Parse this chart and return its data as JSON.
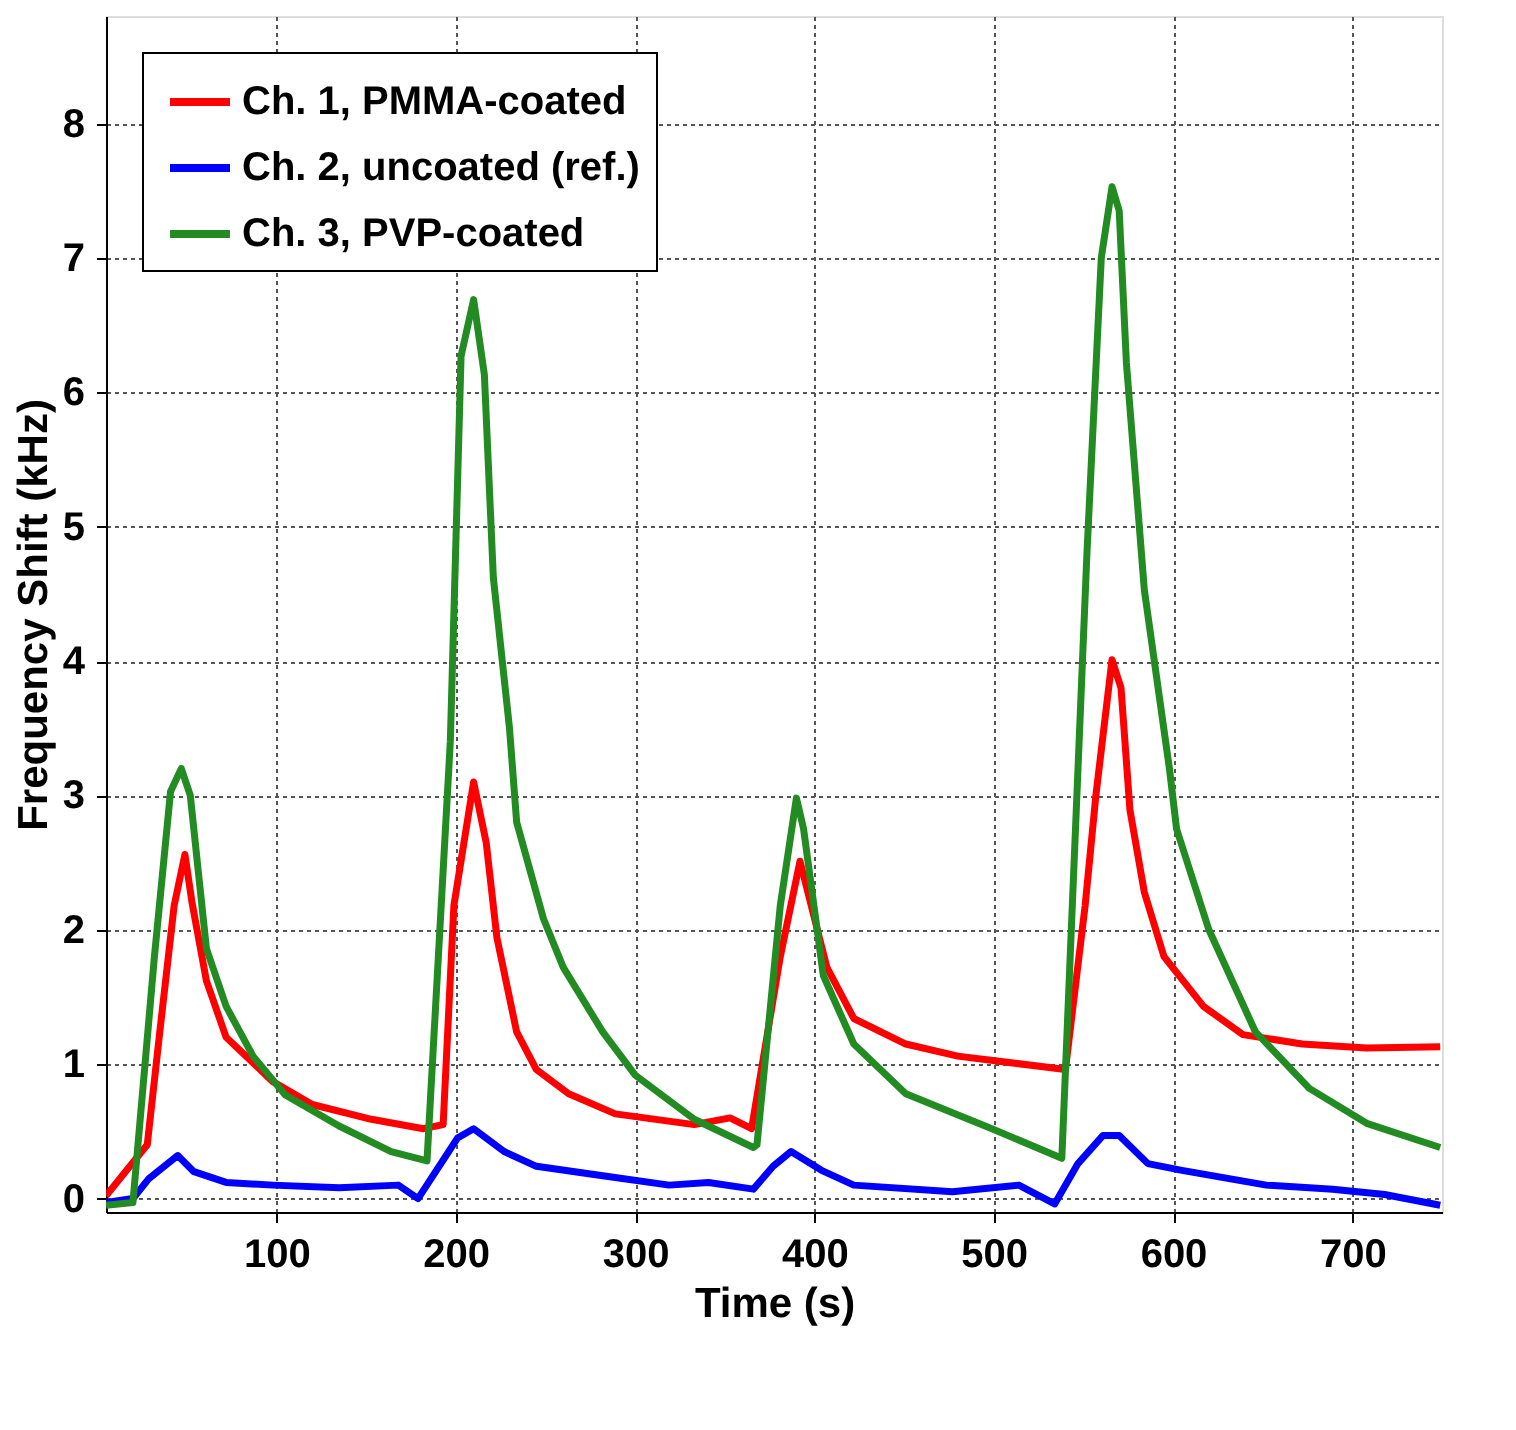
{
  "chart_data": {
    "type": "line",
    "xlabel": "Time (s)",
    "ylabel": "Frequency Shift (kHz)",
    "xlim": [
      5,
      750
    ],
    "ylim": [
      -0.1,
      8.8
    ],
    "xticks": [
      100,
      200,
      300,
      400,
      500,
      600,
      700
    ],
    "yticks": [
      0,
      1,
      2,
      3,
      4,
      5,
      6,
      7,
      8
    ],
    "grid": true,
    "legend": "top left",
    "line_style": "solid",
    "marker": "none",
    "series": [
      {
        "name": "Ch. 1, PMMA-coated",
        "color": "#ff0000",
        "x": [
          5,
          28,
          35,
          43,
          49,
          53,
          61,
          72,
          98,
          120,
          153,
          182,
          193,
          199,
          210,
          217,
          223,
          234,
          245,
          263,
          289,
          333,
          353,
          365,
          381,
          392,
          407,
          422,
          451,
          480,
          540,
          551,
          557,
          566,
          571,
          576,
          584,
          595,
          617,
          639,
          672,
          708,
          749
        ],
        "values": [
          0.02,
          0.4,
          1.24,
          2.18,
          2.56,
          2.2,
          1.62,
          1.2,
          0.87,
          0.7,
          0.59,
          0.52,
          0.55,
          2.18,
          3.1,
          2.65,
          1.94,
          1.24,
          0.96,
          0.78,
          0.63,
          0.55,
          0.6,
          0.52,
          1.8,
          2.51,
          1.72,
          1.34,
          1.15,
          1.06,
          0.96,
          2.18,
          3.0,
          4.01,
          3.8,
          2.89,
          2.28,
          1.8,
          1.43,
          1.22,
          1.15,
          1.12,
          1.13
        ]
      },
      {
        "name": "Ch. 2, uncoated (ref.)",
        "color": "#0000ff",
        "x": [
          5,
          20,
          29,
          45,
          54,
          72,
          98,
          135,
          168,
          179,
          201,
          210,
          227,
          245,
          282,
          319,
          341,
          366,
          377,
          387,
          404,
          422,
          477,
          514,
          534,
          547,
          561,
          570,
          586,
          605,
          652,
          689,
          718,
          749
        ],
        "values": [
          -0.03,
          0.0,
          0.15,
          0.32,
          0.2,
          0.12,
          0.1,
          0.08,
          0.1,
          0.0,
          0.45,
          0.52,
          0.35,
          0.24,
          0.17,
          0.1,
          0.12,
          0.07,
          0.24,
          0.35,
          0.21,
          0.1,
          0.05,
          0.1,
          -0.04,
          0.26,
          0.47,
          0.47,
          0.26,
          0.21,
          0.1,
          0.07,
          0.03,
          -0.05
        ]
      },
      {
        "name": "Ch. 3, PVP-coated",
        "color": "#228b22",
        "x": [
          5,
          20,
          32,
          41,
          47,
          52,
          61,
          72,
          87,
          105,
          135,
          164,
          184,
          197,
          203,
          210,
          216,
          221,
          230,
          234,
          249,
          260,
          282,
          300,
          333,
          366,
          368,
          381,
          390,
          394,
          405,
          422,
          451,
          499,
          538,
          552,
          560,
          566,
          570,
          574,
          584,
          598,
          602,
          620,
          646,
          676,
          708,
          749
        ],
        "values": [
          -0.05,
          -0.03,
          1.8,
          3.03,
          3.2,
          3.0,
          1.86,
          1.43,
          1.06,
          0.77,
          0.54,
          0.35,
          0.28,
          3.4,
          6.27,
          6.69,
          6.13,
          4.62,
          3.5,
          2.8,
          2.08,
          1.72,
          1.24,
          0.92,
          0.59,
          0.38,
          0.4,
          2.18,
          2.98,
          2.75,
          1.66,
          1.15,
          0.78,
          0.52,
          0.3,
          4.8,
          7.0,
          7.53,
          7.35,
          6.22,
          4.53,
          3.2,
          2.75,
          2.0,
          1.24,
          0.82,
          0.56,
          0.38
        ]
      }
    ]
  }
}
